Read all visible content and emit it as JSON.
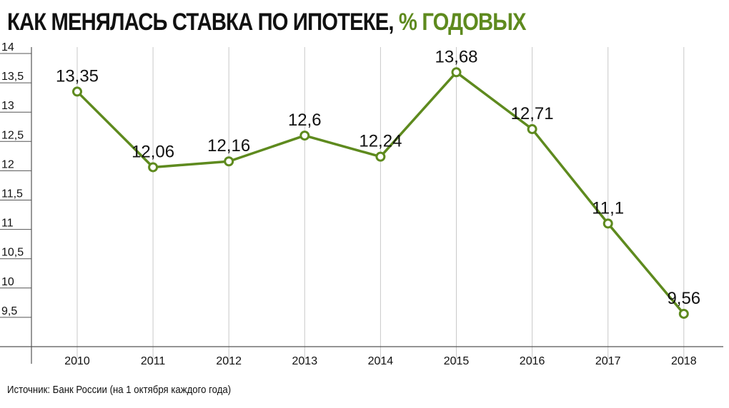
{
  "title": {
    "main": "КАК МЕНЯЛАСЬ СТАВКА ПО ИПОТЕКЕ,",
    "unit": "% ГОДОВЫХ"
  },
  "source": "Источник: Банк России (на 1 октября каждого года)",
  "colors": {
    "line": "#5e8a1e",
    "grid": "#c9c9c9",
    "text": "#111111"
  },
  "chart_data": {
    "type": "line",
    "title": "КАК МЕНЯЛАСЬ СТАВКА ПО ИПОТЕКЕ, % ГОДОВЫХ",
    "categories": [
      "2010",
      "2011",
      "2012",
      "2013",
      "2014",
      "2015",
      "2016",
      "2017",
      "2018"
    ],
    "values": [
      13.35,
      12.06,
      12.16,
      12.6,
      12.24,
      13.68,
      12.71,
      11.1,
      9.56
    ],
    "data_labels": [
      "13,35",
      "12,06",
      "12,16",
      "12,6",
      "12,24",
      "13,68",
      "12,71",
      "11,1",
      "9,56"
    ],
    "y_ticks": [
      9.5,
      10,
      10.5,
      11,
      11.5,
      12,
      12.5,
      13,
      13.5,
      14
    ],
    "y_tick_labels": [
      "9,5",
      "10",
      "10,5",
      "11",
      "11,5",
      "12",
      "12,5",
      "13",
      "13,5",
      "14"
    ],
    "ylim": [
      9,
      14
    ],
    "xlabel": "",
    "ylabel": "",
    "grid": "vertical",
    "legend": "none"
  }
}
